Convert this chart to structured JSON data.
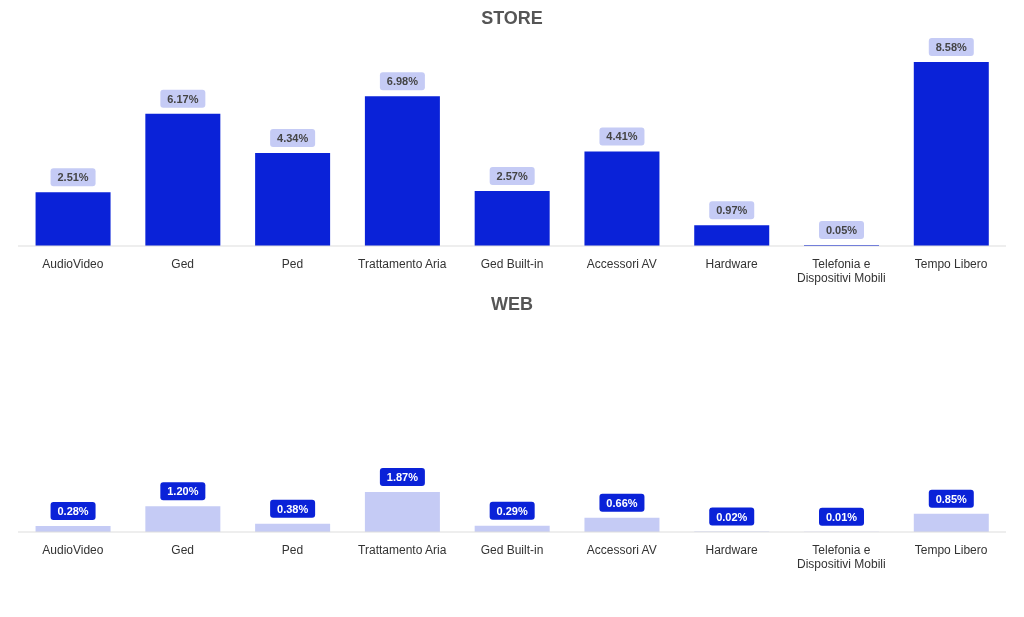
{
  "chart_data": [
    {
      "type": "bar",
      "title": "STORE",
      "categories": [
        "AudioVideo",
        "Ged",
        "Ped",
        "Trattamento Aria",
        "Ged Built-in",
        "Accessori AV",
        "Hardware",
        "Telefonia e Dispositivi Mobili",
        "Tempo Libero"
      ],
      "series": [
        {
          "color": "#0a22d8",
          "values": [
            2.51,
            6.17,
            4.34,
            6.98,
            2.57,
            4.41,
            0.97,
            0.05,
            8.58
          ],
          "value_labels": [
            "2.51%",
            "6.17%",
            "4.34%",
            "6.98%",
            "2.57%",
            "4.41%",
            "0.97%",
            "0.05%",
            "8.58%"
          ]
        }
      ],
      "legend": false,
      "grid": false
    },
    {
      "type": "bar",
      "title": "WEB",
      "categories": [
        "AudioVideo",
        "Ged",
        "Ped",
        "Trattamento Aria",
        "Ged Built-in",
        "Accessori AV",
        "Hardware",
        "Telefonia e Dispositivi Mobili",
        "Tempo Libero"
      ],
      "series": [
        {
          "color": "#c5cbf5",
          "values": [
            0.28,
            1.2,
            0.38,
            1.87,
            0.29,
            0.66,
            0.02,
            0.01,
            0.85
          ],
          "value_labels": [
            "0.28%",
            "1.20%",
            "0.38%",
            "1.87%",
            "0.29%",
            "0.66%",
            "0.02%",
            "0.01%",
            "0.85%"
          ]
        }
      ],
      "legend": false,
      "grid": false
    }
  ]
}
